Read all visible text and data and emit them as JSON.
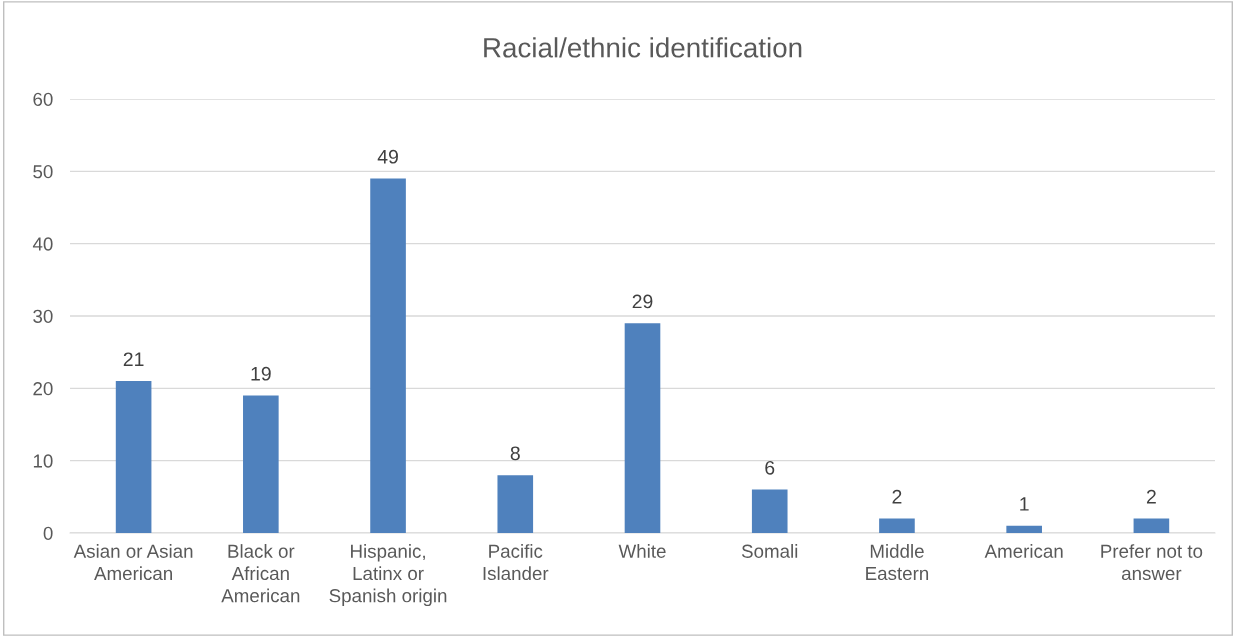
{
  "chart_data": {
    "type": "bar",
    "title": "Racial/ethnic identification",
    "categories": [
      "Asian or Asian\nAmerican",
      "Black or\nAfrican\nAmerican",
      "Hispanic,\nLatinx or\nSpanish origin",
      "Pacific\nIslander",
      "White",
      "Somali",
      "Middle\nEastern",
      "American",
      "Prefer not to\nanswer"
    ],
    "values": [
      21,
      19,
      49,
      8,
      29,
      6,
      2,
      1,
      2
    ],
    "color": "#4f81bd",
    "ylim": [
      0,
      60
    ],
    "yticks": [
      0,
      10,
      20,
      30,
      40,
      50,
      60
    ],
    "grid": "y",
    "data_labels": true,
    "legend": false
  }
}
